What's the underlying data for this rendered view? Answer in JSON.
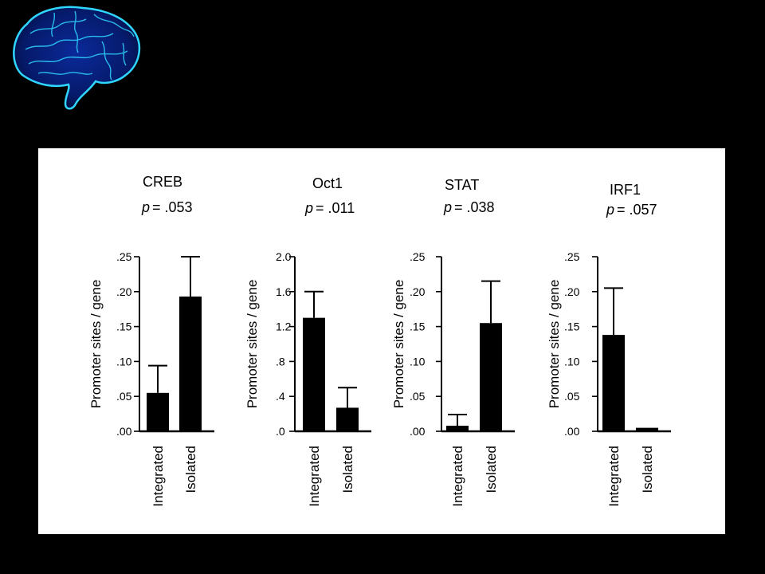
{
  "colors": {
    "background": "#000000",
    "panel": "#ffffff",
    "bar": "#000000",
    "brain_glow": "#2fd6ff"
  },
  "decoration": {
    "icon": "brain-icon"
  },
  "chart_data": [
    {
      "type": "bar",
      "title": "CREB",
      "p_label": "p",
      "p_value": "= .053",
      "ylabel": "Promoter sites / gene",
      "categories": [
        "Integrated",
        "Isolated"
      ],
      "values": [
        0.055,
        0.193
      ],
      "errors": [
        0.039,
        0.057
      ],
      "ylim": [
        0,
        0.25
      ],
      "yticks": [
        0,
        0.05,
        0.1,
        0.15,
        0.2,
        0.25
      ],
      "ytick_labels": [
        ".00",
        ".05",
        ".10",
        ".15",
        ".20",
        ".25"
      ]
    },
    {
      "type": "bar",
      "title": "Oct1",
      "p_label": "p",
      "p_value": "= .011",
      "ylabel": "Promoter sites / gene",
      "categories": [
        "Integrated",
        "Isolated"
      ],
      "values": [
        1.3,
        0.27
      ],
      "errors": [
        0.3,
        0.23
      ],
      "ylim": [
        0,
        2.0
      ],
      "yticks": [
        0,
        0.4,
        0.8,
        1.2,
        1.6,
        2.0
      ],
      "ytick_labels": [
        ".0",
        ".4",
        ".8",
        "1.2",
        "1.6",
        "2.0"
      ]
    },
    {
      "type": "bar",
      "title": "STAT",
      "p_label": "p",
      "p_value": "= .038",
      "ylabel": "Promoter sites / gene",
      "categories": [
        "Integrated",
        "Isolated"
      ],
      "values": [
        0.008,
        0.155
      ],
      "errors": [
        0.016,
        0.06
      ],
      "ylim": [
        0,
        0.25
      ],
      "yticks": [
        0,
        0.05,
        0.1,
        0.15,
        0.2,
        0.25
      ],
      "ytick_labels": [
        ".00",
        ".05",
        ".10",
        ".15",
        ".20",
        ".25"
      ]
    },
    {
      "type": "bar",
      "title": "IRF1",
      "p_label": "p",
      "p_value": "= .057",
      "ylabel": "Promoter sites / gene",
      "categories": [
        "Integrated",
        "Isolated"
      ],
      "values": [
        0.138,
        0.005
      ],
      "errors": [
        0.067,
        0
      ],
      "ylim": [
        0,
        0.25
      ],
      "yticks": [
        0,
        0.05,
        0.1,
        0.15,
        0.2,
        0.25
      ],
      "ytick_labels": [
        ".00",
        ".05",
        ".10",
        ".15",
        ".20",
        ".25"
      ]
    }
  ]
}
